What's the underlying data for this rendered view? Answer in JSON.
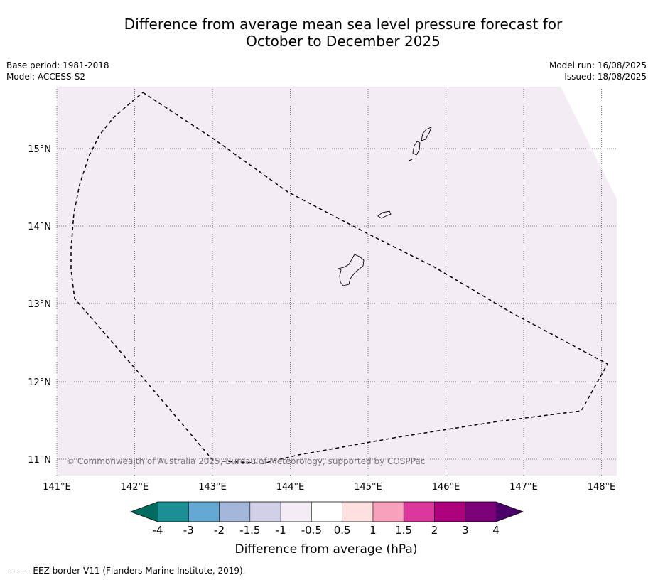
{
  "title_line1": "Difference from average mean sea level pressure forecast for",
  "title_line2": "October to December 2025",
  "meta": {
    "base_period": "Base period: 1981-2018",
    "model": "Model: ACCESS-S2",
    "model_run": "Model run: 16/08/2025",
    "issued": "Issued: 18/08/2025"
  },
  "map": {
    "lon_ticks": [
      "141°E",
      "142°E",
      "143°E",
      "144°E",
      "145°E",
      "146°E",
      "147°E",
      "148°E"
    ],
    "lat_ticks": [
      "15°N",
      "14°N",
      "13°N",
      "12°N",
      "11°N"
    ],
    "copyright": "© Commonwealth of Australia 2025, Bureau of Meteorology, supported by COSPPac",
    "fill_color": "#f4ecf5"
  },
  "colorbar": {
    "title": "Difference from average (hPa)",
    "labels": [
      "-4",
      "-3",
      "-2",
      "-1.5",
      "-1",
      "-0.5",
      "0.5",
      "1",
      "1.5",
      "2",
      "3",
      "4"
    ],
    "colors": [
      "#1b8f94",
      "#65a9d3",
      "#a3b7da",
      "#d1d0e7",
      "#f4ecf5",
      "#ffffff",
      "#fee0e0",
      "#f7a1bc",
      "#dc389b",
      "#ad017e",
      "#7a0177"
    ],
    "under_color": "#006b5e",
    "over_color": "#4b0069"
  },
  "footer": "--  --  -- EEZ border V11 (Flanders Marine Institute, 2019)."
}
